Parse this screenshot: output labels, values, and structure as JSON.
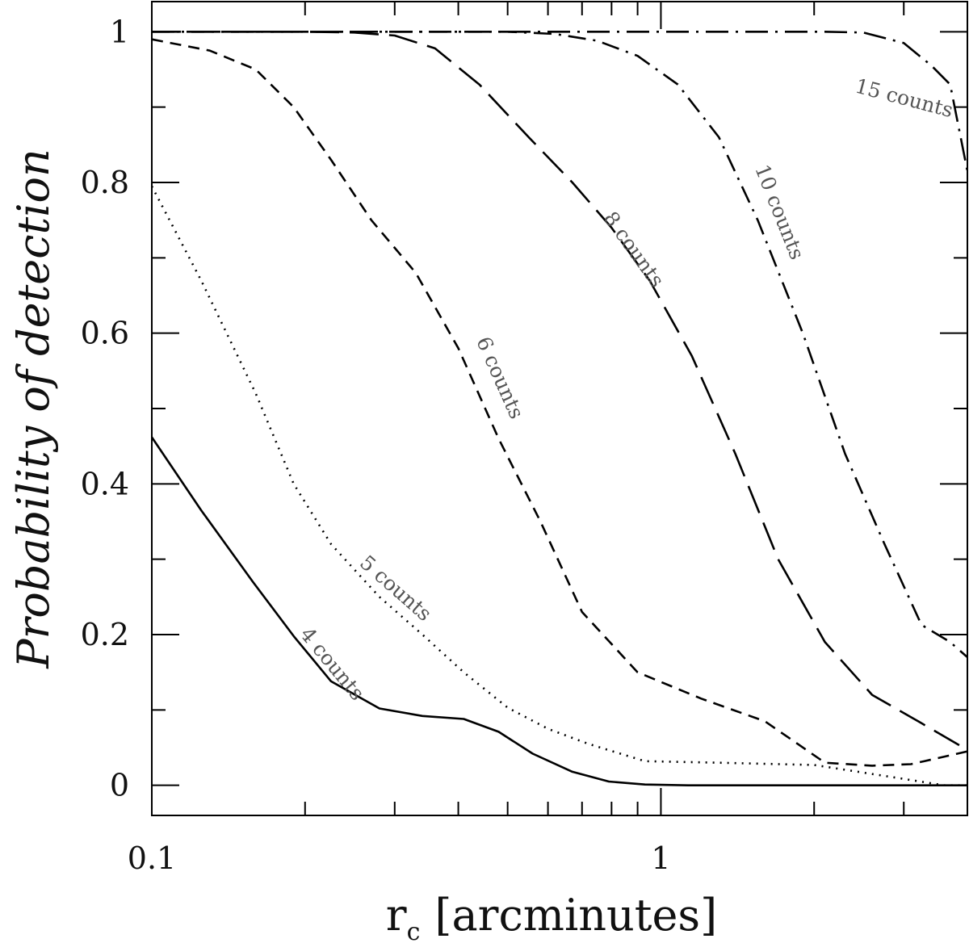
{
  "chart_data": {
    "type": "line",
    "xscale": "log",
    "xlim": [
      0.1,
      4.0
    ],
    "ylim": [
      -0.04,
      1.04
    ],
    "grid": false,
    "xlabel": "r",
    "xlabel_subscript": "c",
    "xlabel_rest": "[arcminutes]",
    "ylabel": "Probability of detection",
    "xticks": [
      {
        "value": 0.1,
        "label": "0.1"
      },
      {
        "value": 1,
        "label": "1"
      }
    ],
    "yticks": [
      {
        "value": 0,
        "label": "0"
      },
      {
        "value": 0.2,
        "label": "0.2"
      },
      {
        "value": 0.4,
        "label": "0.4"
      },
      {
        "value": 0.6,
        "label": "0.6"
      },
      {
        "value": 0.8,
        "label": "0.8"
      },
      {
        "value": 1,
        "label": "1"
      }
    ],
    "series": [
      {
        "name": "4 counts",
        "dash": "",
        "color": "#000000",
        "x": [
          0.1,
          0.125,
          0.158,
          0.19,
          0.225,
          0.28,
          0.34,
          0.41,
          0.48,
          0.56,
          0.67,
          0.79,
          0.93,
          1.13,
          2.0,
          3.0,
          4.0
        ],
        "y": [
          0.462,
          0.365,
          0.27,
          0.198,
          0.138,
          0.102,
          0.092,
          0.088,
          0.071,
          0.042,
          0.018,
          0.005,
          0.001,
          0.0,
          0.0,
          0.0,
          0.0
        ],
        "label_value": [
          0.225,
          0.16
        ]
      },
      {
        "name": "5 counts",
        "dash": "2 7",
        "color": "#000000",
        "x": [
          0.1,
          0.125,
          0.16,
          0.19,
          0.225,
          0.28,
          0.34,
          0.41,
          0.5,
          0.6,
          0.72,
          0.93,
          1.3,
          2.0,
          2.9,
          3.6,
          4.0
        ],
        "y": [
          0.795,
          0.67,
          0.52,
          0.4,
          0.32,
          0.25,
          0.2,
          0.15,
          0.103,
          0.075,
          0.055,
          0.032,
          0.03,
          0.027,
          0.01,
          0.0,
          0.0
        ],
        "label_value": [
          0.3,
          0.26
        ]
      },
      {
        "name": "6 counts",
        "dash": "14 9",
        "color": "#000000",
        "x": [
          0.1,
          0.13,
          0.16,
          0.19,
          0.225,
          0.27,
          0.33,
          0.4,
          0.48,
          0.58,
          0.7,
          0.9,
          1.2,
          1.6,
          2.1,
          2.6,
          3.1,
          4.0
        ],
        "y": [
          0.99,
          0.975,
          0.95,
          0.9,
          0.83,
          0.75,
          0.68,
          0.58,
          0.46,
          0.35,
          0.23,
          0.15,
          0.115,
          0.085,
          0.03,
          0.026,
          0.028,
          0.045
        ],
        "label_value": [
          0.48,
          0.54
        ]
      },
      {
        "name": "8 counts",
        "dash": "36 13",
        "color": "#000000",
        "x": [
          0.1,
          0.2,
          0.25,
          0.3,
          0.36,
          0.44,
          0.55,
          0.67,
          0.8,
          0.95,
          1.15,
          1.4,
          1.7,
          2.1,
          2.6,
          3.2,
          4.0
        ],
        "y": [
          1.0,
          1.0,
          0.999,
          0.995,
          0.978,
          0.93,
          0.86,
          0.8,
          0.74,
          0.67,
          0.57,
          0.44,
          0.3,
          0.19,
          0.12,
          0.085,
          0.047
        ],
        "label_value": [
          0.88,
          0.71
        ]
      },
      {
        "name": "10 counts",
        "dash": "22 9 3 9",
        "color": "#000000",
        "x": [
          0.1,
          0.5,
          0.62,
          0.75,
          0.9,
          1.08,
          1.3,
          1.55,
          1.9,
          2.3,
          2.75,
          3.25,
          3.7,
          4.0
        ],
        "y": [
          1.0,
          1.0,
          0.997,
          0.988,
          0.968,
          0.93,
          0.86,
          0.75,
          0.6,
          0.44,
          0.32,
          0.213,
          0.19,
          0.17
        ],
        "label_value": [
          1.7,
          0.76
        ]
      },
      {
        "name": "15 counts",
        "dash": "28 9 3 9",
        "color": "#000000",
        "x": [
          0.1,
          1.5,
          2.1,
          2.5,
          3.0,
          3.4,
          3.7,
          4.0
        ],
        "y": [
          1.0,
          1.0,
          1.0,
          0.999,
          0.985,
          0.955,
          0.93,
          0.815
        ],
        "label_value": [
          3.0,
          0.91
        ]
      }
    ]
  }
}
